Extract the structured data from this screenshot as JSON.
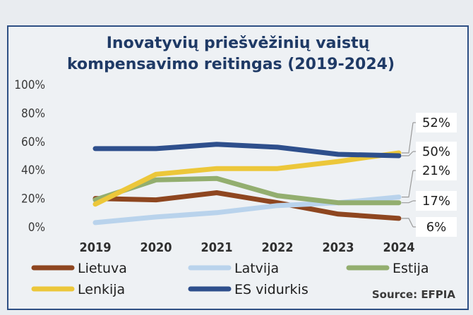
{
  "chart_data": {
    "type": "line",
    "title_lines": [
      "Inovatyvių priešvėžinių vaistų",
      "kompensavimo reitingas (2019-2024)"
    ],
    "x": [
      "2019",
      "2020",
      "2021",
      "2022",
      "2023",
      "2024"
    ],
    "y_ticks": [
      "100%",
      "80%",
      "60%",
      "40%",
      "20%",
      "0%"
    ],
    "ylim": [
      0,
      100
    ],
    "grid": false,
    "series": [
      {
        "name": "Lietuva",
        "color": "#8e4620",
        "values": [
          20,
          19,
          24,
          17,
          9,
          6
        ]
      },
      {
        "name": "Latvija",
        "color": "#b9d3ec",
        "values": [
          3,
          7,
          10,
          15,
          17,
          21
        ]
      },
      {
        "name": "Estija",
        "color": "#93ae6f",
        "values": [
          19,
          33,
          34,
          22,
          17,
          17
        ]
      },
      {
        "name": "Lenkija",
        "color": "#ecc73a",
        "values": [
          16,
          37,
          41,
          41,
          46,
          52
        ]
      },
      {
        "name": "ES vidurkis",
        "color": "#2e4f8c",
        "values": [
          55,
          55,
          58,
          56,
          51,
          50
        ]
      }
    ],
    "callouts": [
      "52%",
      "50%",
      "21%",
      "17%",
      "6%"
    ],
    "legend_position": "bottom",
    "source": "Source: EFPIA"
  }
}
